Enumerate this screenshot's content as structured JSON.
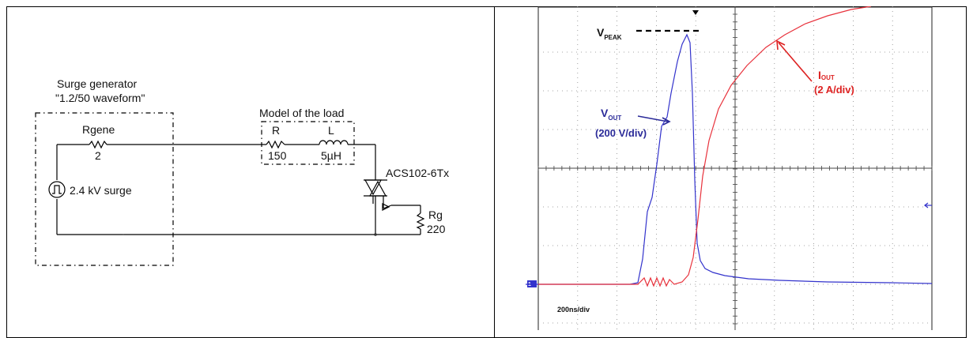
{
  "circuit": {
    "generator_title_line1": "Surge generator",
    "generator_title_line2": "\"1.2/50 waveform\"",
    "rgene_name": "Rgene",
    "rgene_value": "2",
    "source_label": "2.4 kV surge",
    "load_title": "Model of the load",
    "r_name": "R",
    "r_value": "150",
    "l_name": "L",
    "l_value": "5µH",
    "device_label": "ACS102-6Tx",
    "rg_name": "Rg",
    "rg_value": "220"
  },
  "scope": {
    "vpeak_main": "V",
    "vpeak_sub": "PEAK",
    "vout_main": "V",
    "vout_sub": "OUT",
    "vout_scale": "(200 V/div)",
    "iout_main": "I",
    "iout_sub": "OUT",
    "iout_scale": "(2 A/div)",
    "timebase": "200ns/div",
    "colors": {
      "vout": "#3333cc",
      "iout": "#e8323c",
      "vout_label": "#2b2b99",
      "iout_label": "#dd2222"
    }
  }
}
